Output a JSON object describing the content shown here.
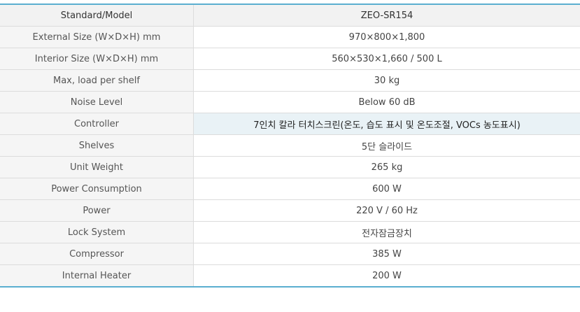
{
  "header": {
    "label": "Standard/Model",
    "value": "ZEO-SR154"
  },
  "rows": [
    {
      "label": "External Size (W×D×H) mm",
      "value": "970×800×1,800"
    },
    {
      "label": "Interior Size (W×D×H) mm",
      "value": "560×530×1,660 / 500 L"
    },
    {
      "label": "Max, load per shelf",
      "value": "30 kg"
    },
    {
      "label": "Noise Level",
      "value": "Below 60 dB"
    },
    {
      "label": "Controller",
      "value": "7인치 칼라 터치스크린(온도, 습도 표시 및 온도조절, VOCs 농도표시)"
    },
    {
      "label": "Shelves",
      "value": "5단 슬라이드"
    },
    {
      "label": "Unit Weight",
      "value": "265 kg"
    },
    {
      "label": "Power Consumption",
      "value": "600 W"
    },
    {
      "label": "Power",
      "value": "220 V / 60 Hz"
    },
    {
      "label": "Lock System",
      "value": "전자잠금장치"
    },
    {
      "label": "Compressor",
      "value": "385 W"
    },
    {
      "label": "Internal Heater",
      "value": "200 W"
    }
  ],
  "colors": {
    "accent": "#5aaed0",
    "highlight": "#e9f2f6"
  }
}
